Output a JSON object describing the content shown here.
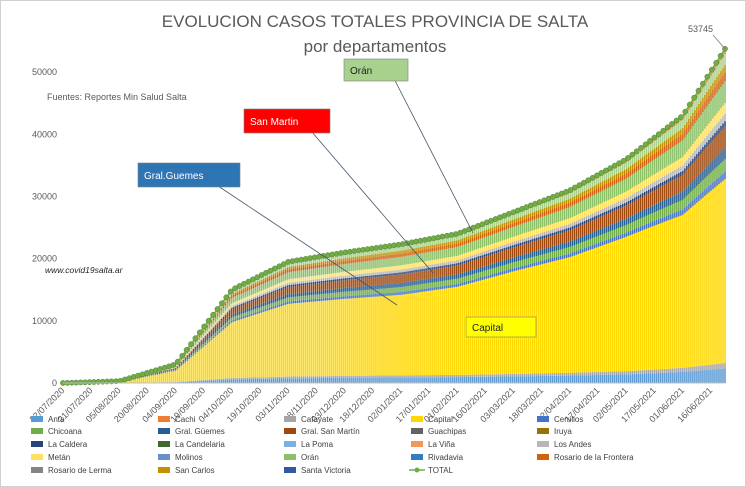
{
  "chart_data": {
    "type": "area",
    "title": "EVOLUCION CASOS TOTALES PROVINCIA DE SALTA",
    "subtitle": "por departamentos",
    "source_note": "Fuentes: Reportes Min Salud Salta",
    "watermark": "www.covid19salta.ar",
    "total_label": "53745",
    "ylim": [
      0,
      55000
    ],
    "y_ticks": [
      0,
      10000,
      20000,
      30000,
      40000,
      50000
    ],
    "x_ticks": [
      "22/07/2020",
      "21/07/2020",
      "05/08/2020",
      "20/08/2020",
      "04/09/2020",
      "19/09/2020",
      "04/10/2020",
      "19/10/2020",
      "03/11/2020",
      "18/11/2020",
      "03/12/2020",
      "18/12/2020",
      "02/01/2021",
      "17/01/2021",
      "01/02/2021",
      "16/02/2021",
      "03/03/2021",
      "18/03/2021",
      "02/04/2021",
      "17/04/2021",
      "02/05/2021",
      "17/05/2021",
      "01/06/2021",
      "16/06/2021"
    ],
    "total_series": {
      "name": "TOTAL",
      "x": [
        0,
        2,
        4,
        6,
        8,
        10,
        12,
        14,
        16,
        18,
        20,
        22,
        23.5
      ],
      "values": [
        0,
        300,
        3000,
        15000,
        19500,
        21000,
        22300,
        24000,
        27500,
        31000,
        36000,
        43000,
        53745
      ]
    },
    "total_fraction_profile": {
      "x": [
        0,
        4,
        8,
        12,
        16,
        20,
        23.5
      ],
      "capital_fraction": [
        0.47,
        0.6,
        0.6,
        0.58,
        0.6,
        0.6,
        0.55
      ]
    },
    "series": [
      {
        "name": "Anta",
        "color": "#5b9bd5"
      },
      {
        "name": "Cachi",
        "color": "#ed7d31"
      },
      {
        "name": "Cafayate",
        "color": "#a5a5a5"
      },
      {
        "name": "Capital",
        "color": "#ffd700"
      },
      {
        "name": "Cerrillos",
        "color": "#4472c4"
      },
      {
        "name": "Chicoana",
        "color": "#70ad47"
      },
      {
        "name": "Gral. Güemes",
        "color": "#255e91"
      },
      {
        "name": "Gral. San Martín",
        "color": "#9e480e"
      },
      {
        "name": "Guachipas",
        "color": "#636363"
      },
      {
        "name": "Iruya",
        "color": "#997300"
      },
      {
        "name": "La Caldera",
        "color": "#264478"
      },
      {
        "name": "La Candelaria",
        "color": "#43682b"
      },
      {
        "name": "La Poma",
        "color": "#7cafdd"
      },
      {
        "name": "La Viña",
        "color": "#f1975a"
      },
      {
        "name": "Los Andes",
        "color": "#b7b7b7"
      },
      {
        "name": "Metán",
        "color": "#ffe062"
      },
      {
        "name": "Molinos",
        "color": "#698ed0"
      },
      {
        "name": "Orán",
        "color": "#8cc168"
      },
      {
        "name": "Rivadavia",
        "color": "#327dc2"
      },
      {
        "name": "Rosario de la Frontera",
        "color": "#d26012"
      },
      {
        "name": "Rosario de Lerma",
        "color": "#848484"
      },
      {
        "name": "San Carlos",
        "color": "#c09200"
      },
      {
        "name": "Santa Victoria",
        "color": "#335aa1"
      },
      {
        "name": "TOTAL",
        "color": "#70ad47",
        "marker": true
      }
    ],
    "callouts": [
      {
        "label": "Orán",
        "bg": "#a9d18e",
        "text_color": "#1f1f1f"
      },
      {
        "label": "San Martin",
        "bg": "#ff0000",
        "text_color": "#ffffff"
      },
      {
        "label": "Gral.Guemes",
        "bg": "#2e75b6",
        "text_color": "#ffffff"
      },
      {
        "label": "Capital",
        "bg": "#ffff00",
        "text_color": "#1f1f1f"
      }
    ],
    "grid": false,
    "legend_position": "bottom"
  }
}
